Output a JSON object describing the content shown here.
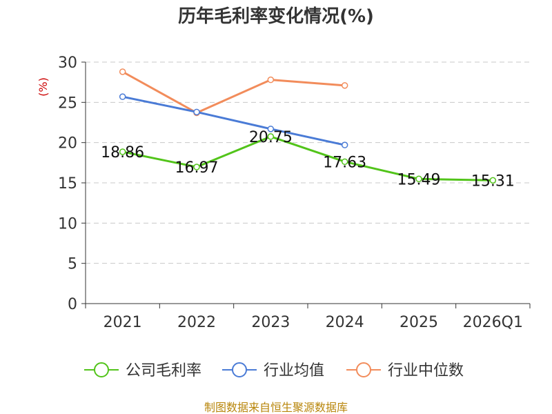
{
  "chart_data": {
    "type": "line",
    "title": "历年毛利率变化情况(%)",
    "ylabel": "(%)",
    "categories": [
      "2021",
      "2022",
      "2023",
      "2024",
      "2025",
      "2026Q1"
    ],
    "ylim": [
      0,
      30
    ],
    "yticks": [
      0,
      5,
      10,
      15,
      20,
      25,
      30
    ],
    "grid": true,
    "series": [
      {
        "name": "公司毛利率",
        "color": "#52c41a",
        "values": [
          18.86,
          16.97,
          20.75,
          17.63,
          15.49,
          15.31
        ],
        "labels": [
          "18.86",
          "16.97",
          "20.75",
          "17.63",
          "15.49",
          "15.31"
        ]
      },
      {
        "name": "行业均值",
        "color": "#4a7bd6",
        "values": [
          25.7,
          23.8,
          21.7,
          19.7,
          null,
          null
        ]
      },
      {
        "name": "行业中位数",
        "color": "#f28c5b",
        "values": [
          28.8,
          23.7,
          27.8,
          27.1,
          null,
          null
        ]
      }
    ],
    "legend_position": "bottom"
  },
  "source_text": "制图数据来自恒生聚源数据库"
}
